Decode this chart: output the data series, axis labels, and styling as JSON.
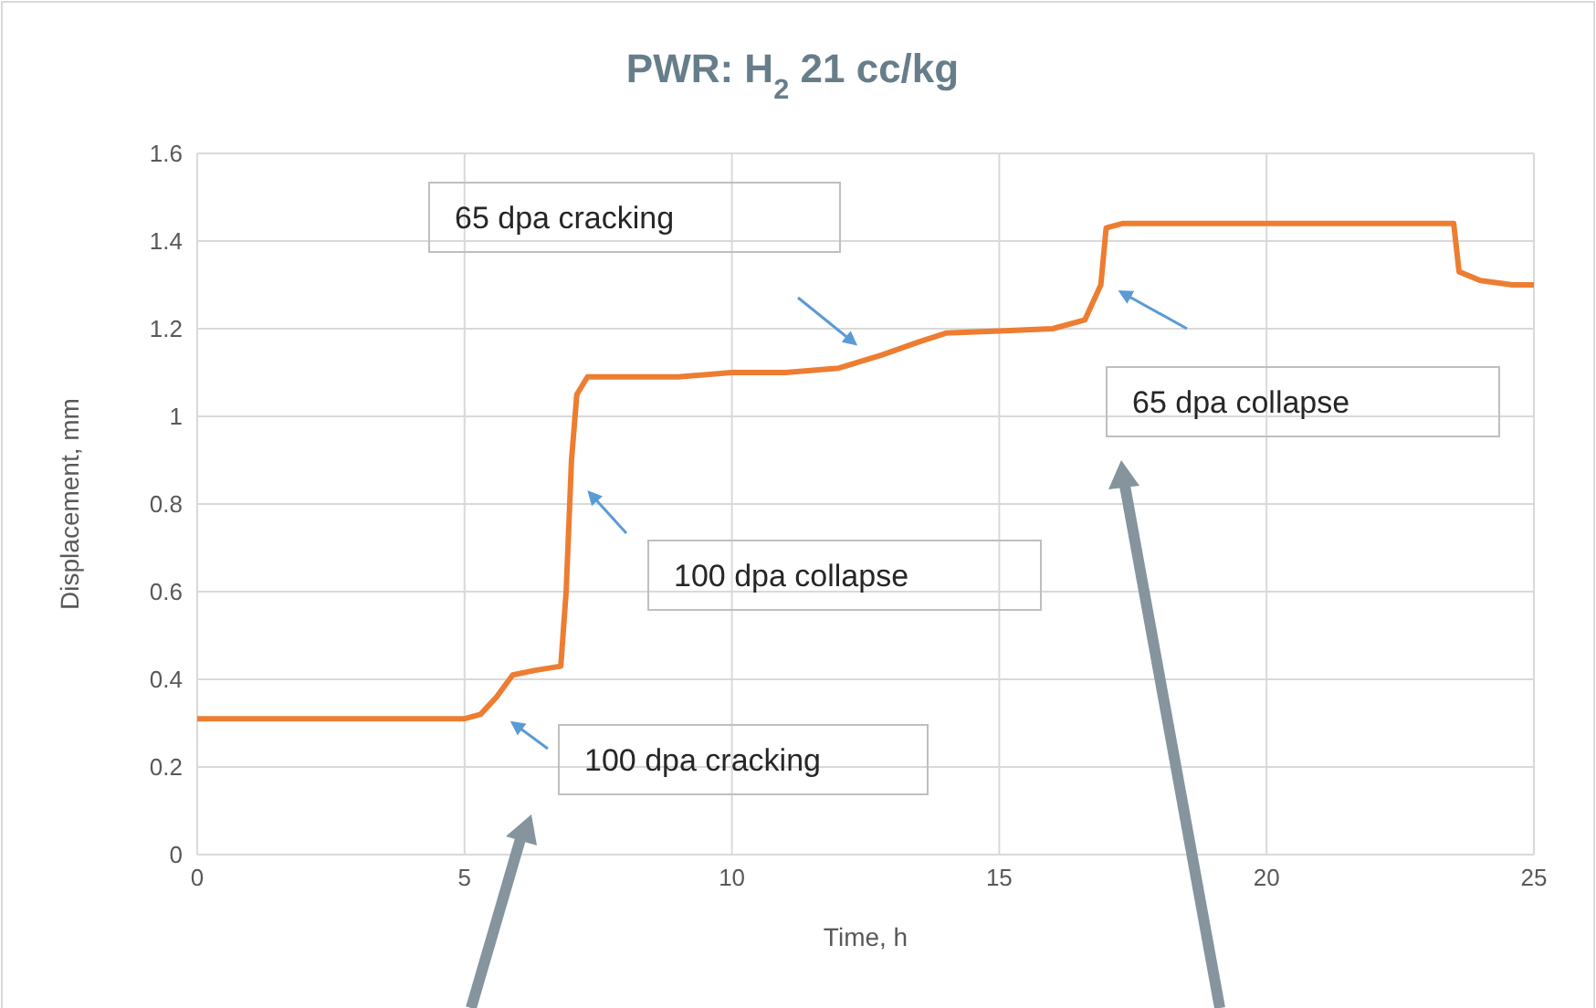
{
  "chart_data": {
    "type": "line",
    "title": "PWR: H$_{2}$ 21 cc/kg",
    "xlabel": "Time, h",
    "ylabel": "Displacement, mm",
    "x": [
      0,
      1,
      2,
      3,
      4,
      5,
      5.3,
      5.6,
      5.9,
      6.3,
      6.8,
      6.9,
      7.0,
      7.1,
      7.3,
      8,
      9,
      10,
      11,
      12,
      12.8,
      13.5,
      14,
      15,
      16,
      16.6,
      16.9,
      17.0,
      17.3,
      18,
      19,
      20,
      21,
      22,
      23,
      23.5,
      23.6,
      24,
      24.6,
      25
    ],
    "series": [
      {
        "color": "#ed7d31",
        "values": [
          0.31,
          0.31,
          0.31,
          0.31,
          0.31,
          0.31,
          0.32,
          0.36,
          0.41,
          0.42,
          0.43,
          0.6,
          0.9,
          1.05,
          1.09,
          1.09,
          1.09,
          1.1,
          1.1,
          1.11,
          1.14,
          1.17,
          1.19,
          1.195,
          1.2,
          1.22,
          1.3,
          1.43,
          1.44,
          1.44,
          1.44,
          1.44,
          1.44,
          1.44,
          1.44,
          1.44,
          1.33,
          1.31,
          1.3,
          1.3
        ]
      }
    ],
    "xlim": [
      0,
      25
    ],
    "xticks": [
      0,
      5,
      10,
      15,
      20,
      25
    ],
    "ylim": [
      0,
      1.6
    ],
    "yticks": [
      0,
      0.2,
      0.4,
      0.6,
      0.8,
      1,
      1.2,
      1.4,
      1.6
    ],
    "grid": true,
    "legend": false,
    "marker": "none",
    "line_style": "solid",
    "annotations": [
      "65 dpa cracking",
      "100 dpa collapse",
      "100 dpa cracking",
      "65 dpa collapse"
    ]
  }
}
